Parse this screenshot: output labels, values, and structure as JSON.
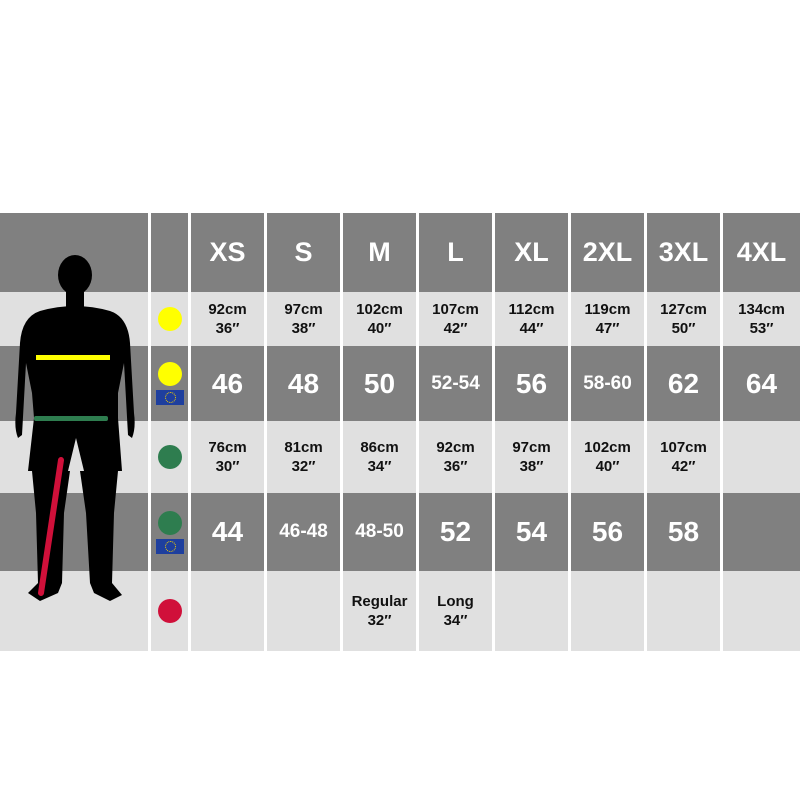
{
  "sizes": [
    "XS",
    "S",
    "M",
    "L",
    "XL",
    "2XL",
    "3XL",
    "4XL"
  ],
  "colors": {
    "chest": "#ffff00",
    "waist": "#2e7d4f",
    "leg": "#d0103a",
    "eu_flag": "#1e3f9e",
    "dark_row": "#808080",
    "light_row": "#e0e0e0"
  },
  "rows": [
    {
      "indicator": "chest",
      "eu": false,
      "type": "meas",
      "cells": [
        [
          "92cm",
          "36″"
        ],
        [
          "97cm",
          "38″"
        ],
        [
          "102cm",
          "40″"
        ],
        [
          "107cm",
          "42″"
        ],
        [
          "112cm",
          "44″"
        ],
        [
          "119cm",
          "47″"
        ],
        [
          "127cm",
          "50″"
        ],
        [
          "134cm",
          "53″"
        ]
      ]
    },
    {
      "indicator": "chest",
      "eu": true,
      "type": "eu",
      "cells": [
        "46",
        "48",
        "50",
        "52-54",
        "56",
        "58-60",
        "62",
        "64"
      ]
    },
    {
      "indicator": "waist",
      "eu": false,
      "type": "meas",
      "cells": [
        [
          "76cm",
          "30″"
        ],
        [
          "81cm",
          "32″"
        ],
        [
          "86cm",
          "34″"
        ],
        [
          "92cm",
          "36″"
        ],
        [
          "97cm",
          "38″"
        ],
        [
          "102cm",
          "40″"
        ],
        [
          "107cm",
          "42″"
        ],
        [
          "",
          ""
        ]
      ]
    },
    {
      "indicator": "waist",
      "eu": true,
      "type": "eu",
      "cells": [
        "44",
        "46-48",
        "48-50",
        "52",
        "54",
        "56",
        "58",
        ""
      ]
    },
    {
      "indicator": "leg",
      "eu": false,
      "type": "meas",
      "cells": [
        [
          "",
          ""
        ],
        [
          "",
          ""
        ],
        [
          "Regular",
          "32″"
        ],
        [
          "Long",
          "34″"
        ],
        [
          "",
          ""
        ],
        [
          "",
          ""
        ],
        [
          "",
          ""
        ],
        [
          "",
          ""
        ]
      ]
    }
  ]
}
